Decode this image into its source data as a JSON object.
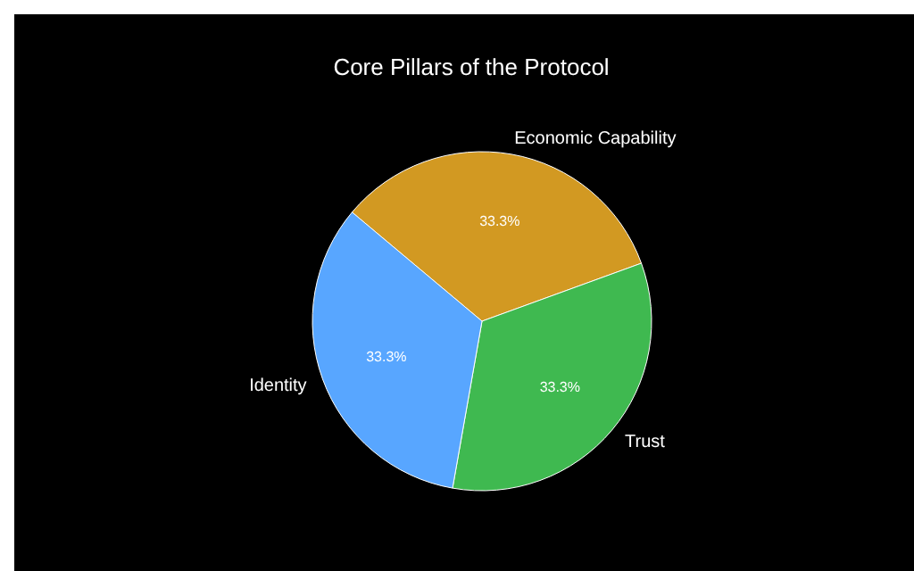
{
  "chart_data": {
    "type": "pie",
    "title": "Core Pillars of the Protocol",
    "categories": [
      "Economic Capability",
      "Trust",
      "Identity"
    ],
    "values": [
      33.3,
      33.3,
      33.3
    ],
    "colors": [
      "#d29922",
      "#3fb950",
      "#58a6ff"
    ],
    "value_labels": [
      "33.3%",
      "33.3%",
      "33.3%"
    ]
  }
}
